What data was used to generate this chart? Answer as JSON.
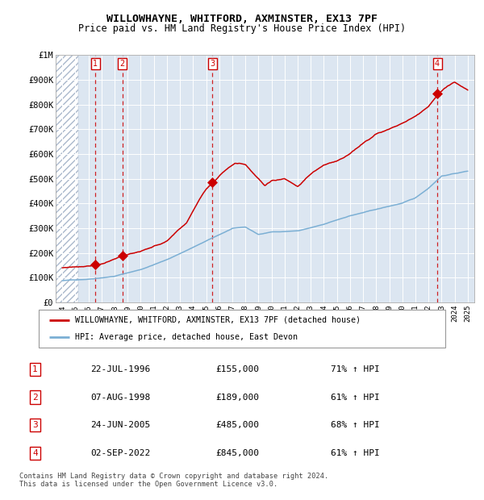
{
  "title": "WILLOWHAYNE, WHITFORD, AXMINSTER, EX13 7PF",
  "subtitle": "Price paid vs. HM Land Registry's House Price Index (HPI)",
  "footer": "Contains HM Land Registry data © Crown copyright and database right 2024.\nThis data is licensed under the Open Government Licence v3.0.",
  "legend_line1": "WILLOWHAYNE, WHITFORD, AXMINSTER, EX13 7PF (detached house)",
  "legend_line2": "HPI: Average price, detached house, East Devon",
  "sales": [
    {
      "num": 1,
      "date": "22-JUL-1996",
      "price": 155000,
      "pct": "71% ↑ HPI",
      "year": 1996.55
    },
    {
      "num": 2,
      "date": "07-AUG-1998",
      "price": 189000,
      "pct": "61% ↑ HPI",
      "year": 1998.6
    },
    {
      "num": 3,
      "date": "24-JUN-2005",
      "price": 485000,
      "pct": "68% ↑ HPI",
      "year": 2005.48
    },
    {
      "num": 4,
      "date": "02-SEP-2022",
      "price": 845000,
      "pct": "61% ↑ HPI",
      "year": 2022.67
    }
  ],
  "xlim": [
    1993.5,
    2025.5
  ],
  "ylim": [
    0,
    1000000
  ],
  "yticks": [
    0,
    100000,
    200000,
    300000,
    400000,
    500000,
    600000,
    700000,
    800000,
    900000,
    1000000
  ],
  "ytick_labels": [
    "£0",
    "£100K",
    "£200K",
    "£300K",
    "£400K",
    "£500K",
    "£600K",
    "£700K",
    "£800K",
    "£900K",
    "£1M"
  ],
  "xticks": [
    1994,
    1995,
    1996,
    1997,
    1998,
    1999,
    2000,
    2001,
    2002,
    2003,
    2004,
    2005,
    2006,
    2007,
    2008,
    2009,
    2010,
    2011,
    2012,
    2013,
    2014,
    2015,
    2016,
    2017,
    2018,
    2019,
    2020,
    2021,
    2022,
    2023,
    2024,
    2025
  ],
  "red_color": "#cc0000",
  "blue_color": "#7bafd4",
  "bg_color": "#dce6f1",
  "hatch_color": "#aab8cc",
  "grid_color": "#ffffff",
  "dashed_line_color": "#cc0000",
  "fig_width": 6.0,
  "fig_height": 6.2,
  "dpi": 100
}
